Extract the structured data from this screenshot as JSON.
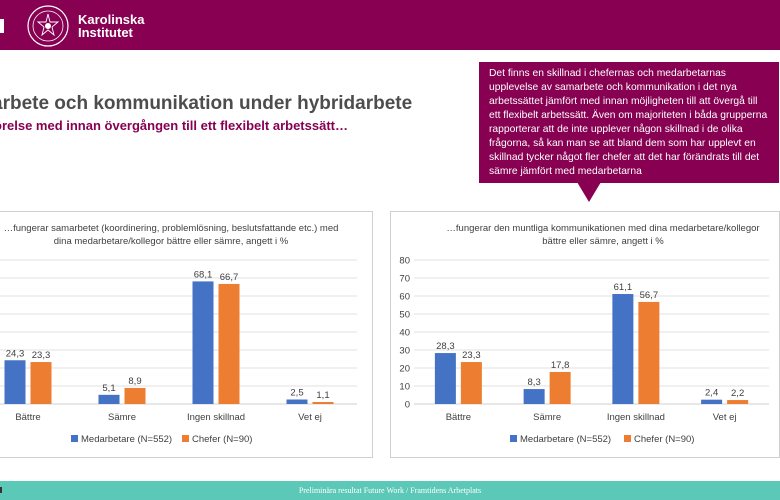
{
  "header": {
    "logo_line1": "Karolinska",
    "logo_line2": "Institutet",
    "colors": {
      "brand": "#870052",
      "footer": "#5cc8b8"
    }
  },
  "slide": {
    "title": "arbete och kommunikation under hybridarbete",
    "subtitle": "örelse med innan övergången till ett flexibelt arbetssätt…"
  },
  "callout": {
    "text": "Det finns en skillnad i chefernas och medarbetarnas upplevelse av samarbete och kommunikation i det nya arbetssättet jämfört med innan möjligheten till att övergå till ett flexibelt arbetssätt. Även om majoriteten i båda grupperna rapporterar att de inte upplever någon skillnad i de olika frågorna, så kan man se att bland dem som har upplevt en skillnad tycker något fler chefer att det har förändrats till det sämre jämfört med medarbetarna"
  },
  "footer": {
    "text": "Preliminära resultat Future Work / Framtidens Arbetplats"
  },
  "chart_data": [
    {
      "type": "bar",
      "title": "…fungerar samarbetet (koordinering, problemlösning, beslutsfattande etc.) med dina medarbetare/kollegor bättre eller sämre, angett i %",
      "categories": [
        "Bättre",
        "Sämre",
        "Ingen skillnad",
        "Vet ej"
      ],
      "series": [
        {
          "name": "Medarbetare (N=552)",
          "color": "#4472c4",
          "values": [
            24.3,
            5.1,
            68.1,
            2.5
          ]
        },
        {
          "name": "Chefer (N=90)",
          "color": "#ed7d31",
          "values": [
            23.3,
            8.9,
            66.7,
            1.1
          ]
        }
      ],
      "value_labels": [
        [
          "24,3",
          "5,1",
          "68,1",
          "2,5"
        ],
        [
          "23,3",
          "8,9",
          "66,7",
          "1,1"
        ]
      ],
      "ylim": [
        0,
        80
      ],
      "yticks": [],
      "grid": true,
      "legend": "bottom"
    },
    {
      "type": "bar",
      "title": "…fungerar den muntliga kommunikationen med dina medarbetare/kollegor bättre eller sämre, angett i %",
      "categories": [
        "Bättre",
        "Sämre",
        "Ingen skillnad",
        "Vet ej"
      ],
      "series": [
        {
          "name": "Medarbetare (N=552)",
          "color": "#4472c4",
          "values": [
            28.3,
            8.3,
            61.1,
            2.4
          ]
        },
        {
          "name": "Chefer (N=90)",
          "color": "#ed7d31",
          "values": [
            23.3,
            17.8,
            56.7,
            2.2
          ]
        }
      ],
      "value_labels": [
        [
          "28,3",
          "8,3",
          "61,1",
          "2,4"
        ],
        [
          "23,3",
          "17,8",
          "56,7",
          "2,2"
        ]
      ],
      "ylim": [
        0,
        80
      ],
      "yticks": [
        "0",
        "10",
        "20",
        "30",
        "40",
        "50",
        "60",
        "70",
        "80"
      ],
      "grid": true,
      "legend": "bottom"
    }
  ]
}
